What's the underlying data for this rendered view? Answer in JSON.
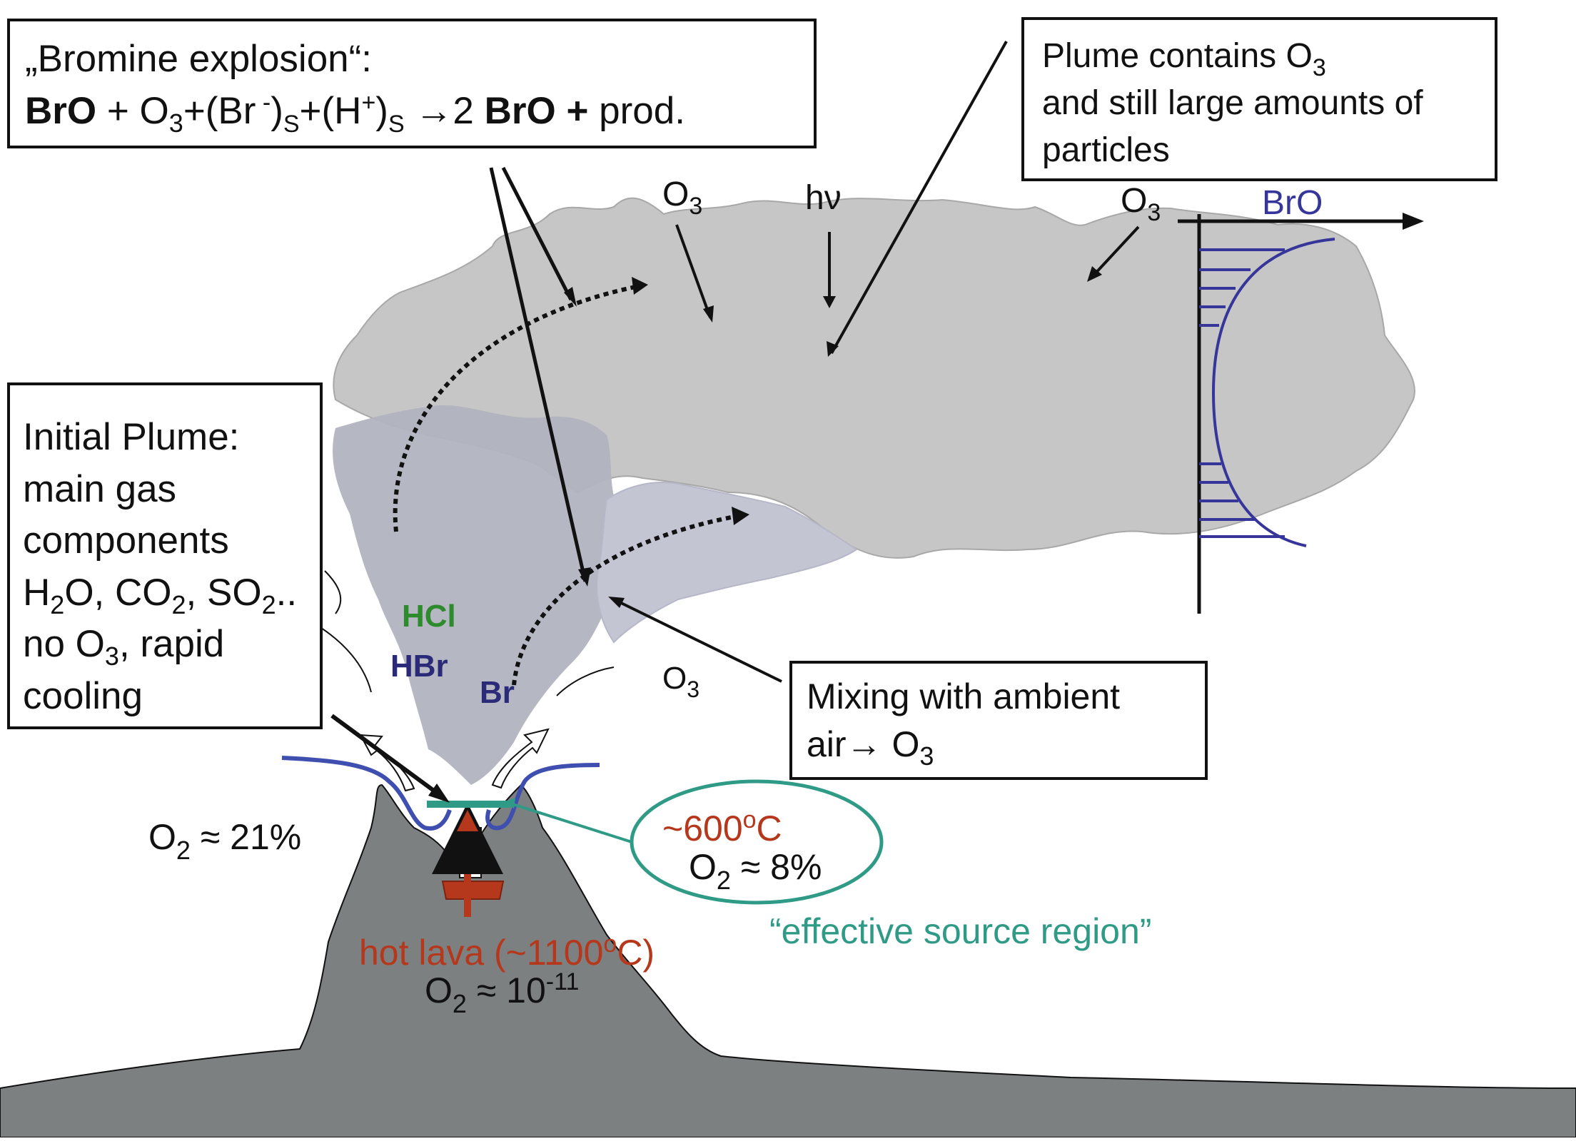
{
  "colors": {
    "plume_outer": "#c6c6c6",
    "plume_inner": "#b1b3bf",
    "plume_mixing": "#c3c5d2",
    "volcano": "#7d8081",
    "lava": "#b5371c",
    "teal": "#2f9b86",
    "bro_blue": "#35359a",
    "hcl_green": "#2d8a2d",
    "hbr_navy": "#2a2a78"
  },
  "bromine_box": {
    "line1": "„Bromine explosion“:",
    "eq": {
      "bro1": "BrO",
      "plus_o3": " + O",
      "sub3": "3",
      "plus_br": "+(Br",
      "sup_minus": " -",
      "close_s1": ")",
      "sub_s1": "S",
      "plus_h": "+(H",
      "sup_plus": "+",
      "close_s2": ")",
      "sub_s2": "S",
      "arrow": " →2 ",
      "bro2": "BrO",
      "plus_bold": " +",
      "prod": " prod."
    }
  },
  "plume_box": {
    "line1": "Plume contains O",
    "line1_sub": "3",
    "line2": "and still large amounts of",
    "line3": "particles"
  },
  "initial_box": {
    "line1": "Initial Plume:",
    "line2": "main gas",
    "line3": "components",
    "line4": {
      "a": "H",
      "a_sub": "2",
      "b": "O, CO",
      "b_sub": "2",
      "c": ", SO",
      "c_sub": "2",
      "d": ".."
    },
    "line5": {
      "a": "no O",
      "a_sub": "3",
      "b": ", rapid"
    },
    "line6": "cooling"
  },
  "mixing_box": {
    "line1": "Mixing with ambient",
    "line2": "air→ O",
    "line2_sub": "3"
  },
  "labels": {
    "o3": "O",
    "o3_sub": "3",
    "hv": "hν",
    "bro_axis": "BrO",
    "hcl": "HCl",
    "hbr": "HBr",
    "br": "Br",
    "o2_ambient": {
      "a": "O",
      "sub": "2",
      "b": " ≈ 21%"
    },
    "temp_600": {
      "a": "~600",
      "sup": "o",
      "b": "C"
    },
    "o2_8": {
      "a": "O",
      "sub": "2",
      "b": " ≈ 8%"
    },
    "effective": "“effective source region”",
    "hot_lava": {
      "a": "hot lava (~1100",
      "sup": "o",
      "b": "C)"
    },
    "o2_lava": {
      "a": "O",
      "sub": "2",
      "b": " ≈ 10",
      "sup": "-11"
    }
  }
}
